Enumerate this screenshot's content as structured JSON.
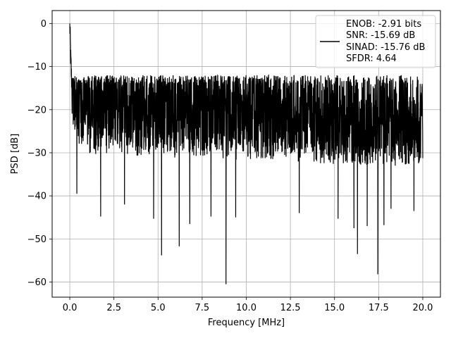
{
  "chart_data": {
    "type": "line",
    "xlabel": "Frequency [MHz]",
    "ylabel": "PSD [dB]",
    "xlim": [
      -1.0,
      21.0
    ],
    "ylim": [
      -63.5,
      3.0
    ],
    "grid": true,
    "x_ticks": [
      0.0,
      2.5,
      5.0,
      7.5,
      10.0,
      12.5,
      15.0,
      17.5,
      20.0
    ],
    "x_tick_labels": [
      "0.0",
      "2.5",
      "5.0",
      "7.5",
      "10.0",
      "12.5",
      "15.0",
      "17.5",
      "20.0"
    ],
    "y_ticks": [
      0,
      -10,
      -20,
      -30,
      -40,
      -50,
      -60
    ],
    "y_tick_labels": [
      "0",
      "−10",
      "−20",
      "−30",
      "−40",
      "−50",
      "−60"
    ],
    "legend": {
      "placement": "top-right",
      "lines": [
        "ENOB: -2.91 bits",
        "SNR: -15.69 dB",
        "SINAD: -15.76 dB",
        "SFDR: 4.64"
      ]
    },
    "series": [
      {
        "color": "#000000",
        "x_start": 0.0,
        "x_end": 20.0,
        "anchors": [
          [
            0.0,
            0.0
          ],
          [
            0.05,
            -8
          ],
          [
            0.1,
            -13
          ],
          [
            0.2,
            -16
          ],
          [
            0.4,
            -17
          ],
          [
            1.0,
            -19
          ],
          [
            20.0,
            -22
          ]
        ],
        "deep_dips": [
          [
            0.4,
            -39.5
          ],
          [
            1.75,
            -44.8
          ],
          [
            3.1,
            -42
          ],
          [
            4.75,
            -45.3
          ],
          [
            5.2,
            -53.8
          ],
          [
            6.2,
            -51.7
          ],
          [
            6.8,
            -46.5
          ],
          [
            8.0,
            -44.8
          ],
          [
            8.85,
            -60.5
          ],
          [
            9.4,
            -45
          ],
          [
            13.0,
            -44
          ],
          [
            15.2,
            -45.3
          ],
          [
            16.1,
            -47.5
          ],
          [
            16.3,
            -53.5
          ],
          [
            16.85,
            -47
          ],
          [
            17.45,
            -58.2
          ],
          [
            17.8,
            -46.8
          ],
          [
            18.2,
            -43
          ],
          [
            19.5,
            -43.5
          ]
        ],
        "noise_band_low": -35,
        "noise_band_high": -12
      }
    ]
  }
}
